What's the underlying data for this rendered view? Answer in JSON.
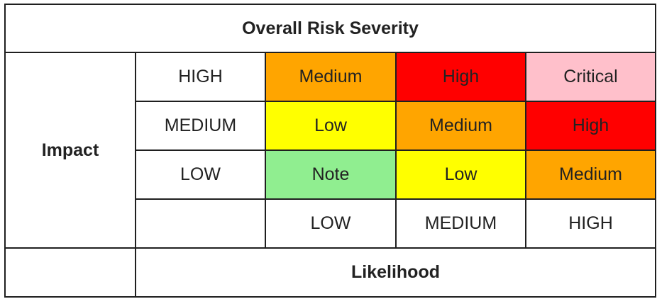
{
  "title": "Overall Risk Severity",
  "y_axis_label": "Impact",
  "x_axis_label": "Likelihood",
  "impact_levels": [
    "HIGH",
    "MEDIUM",
    "LOW"
  ],
  "likelihood_levels": [
    "LOW",
    "MEDIUM",
    "HIGH"
  ],
  "matrix": [
    [
      {
        "label": "Medium",
        "color": "#FFA500"
      },
      {
        "label": "High",
        "color": "#FF0000"
      },
      {
        "label": "Critical",
        "color": "#FFC0CB"
      }
    ],
    [
      {
        "label": "Low",
        "color": "#FFFF00"
      },
      {
        "label": "Medium",
        "color": "#FFA500"
      },
      {
        "label": "High",
        "color": "#FF0000"
      }
    ],
    [
      {
        "label": "Note",
        "color": "#90EE90"
      },
      {
        "label": "Low",
        "color": "#FFFF00"
      },
      {
        "label": "Medium",
        "color": "#FFA500"
      }
    ]
  ]
}
